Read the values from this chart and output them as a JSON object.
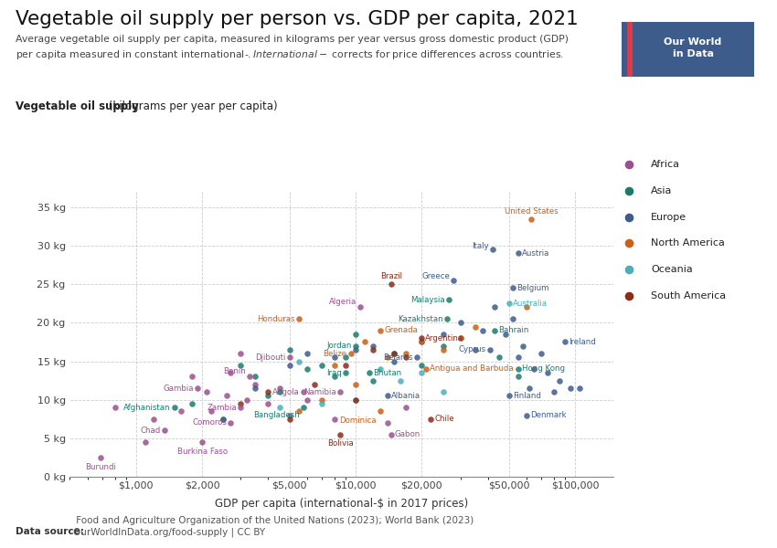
{
  "title": "Vegetable oil supply per person vs. GDP per capita, 2021",
  "subtitle": "Average vegetable oil supply per capita, measured in kilograms per year versus gross domestic product (GDP)\nper capita measured in constant international-$. International-$ corrects for price differences across countries.",
  "ylabel_bold": "Vegetable oil supply",
  "ylabel_normal": " (kilograms per year per capita)",
  "xlabel": "GDP per capita (international-$ in 2017 prices)",
  "datasource_bold": "Data source:",
  "datasource_normal": " Food and Agriculture Organization of the United Nations (2023); World Bank (2023)\nOurWorldInData.org/food-supply | CC BY",
  "ylim": [
    0,
    37
  ],
  "yticks": [
    0,
    5,
    10,
    15,
    20,
    25,
    30,
    35
  ],
  "bg_color": "#ffffff",
  "grid_color": "#c8c8c8",
  "continents": {
    "Africa": {
      "color": "#9B4F8E"
    },
    "Asia": {
      "color": "#1A7B6C"
    },
    "Europe": {
      "color": "#3D5C8C"
    },
    "North America": {
      "color": "#C8611A"
    },
    "Oceania": {
      "color": "#4AAFB8"
    },
    "South America": {
      "color": "#8B2C1A"
    }
  },
  "labeled_points": [
    {
      "country": "Burundi",
      "gdp": 690,
      "veg": 2.5,
      "continent": "Africa"
    },
    {
      "country": "Afghanistan",
      "gdp": 1500,
      "veg": 9.0,
      "continent": "Asia"
    },
    {
      "country": "Chad",
      "gdp": 1350,
      "veg": 6.0,
      "continent": "Africa"
    },
    {
      "country": "Gambia",
      "gdp": 1900,
      "veg": 11.5,
      "continent": "Africa"
    },
    {
      "country": "Burkina Faso",
      "gdp": 2000,
      "veg": 4.5,
      "continent": "Africa"
    },
    {
      "country": "Comoros",
      "gdp": 2700,
      "veg": 7.0,
      "continent": "Africa"
    },
    {
      "country": "Zambia",
      "gdp": 3000,
      "veg": 9.0,
      "continent": "Africa"
    },
    {
      "country": "Benin",
      "gdp": 3300,
      "veg": 13.0,
      "continent": "Africa"
    },
    {
      "country": "Djibouti",
      "gdp": 5000,
      "veg": 15.5,
      "continent": "Africa"
    },
    {
      "country": "Angola",
      "gdp": 5800,
      "veg": 11.0,
      "continent": "Africa"
    },
    {
      "country": "Bangladesh",
      "gdp": 5800,
      "veg": 9.0,
      "continent": "Asia"
    },
    {
      "country": "Honduras",
      "gdp": 5500,
      "veg": 20.5,
      "continent": "North America"
    },
    {
      "country": "Namibia",
      "gdp": 8500,
      "veg": 11.0,
      "continent": "Africa"
    },
    {
      "country": "Iraq",
      "gdp": 9000,
      "veg": 13.5,
      "continent": "Asia"
    },
    {
      "country": "Bolivia",
      "gdp": 8500,
      "veg": 5.5,
      "continent": "South America"
    },
    {
      "country": "Algeria",
      "gdp": 10500,
      "veg": 22.0,
      "continent": "Africa"
    },
    {
      "country": "Jordan",
      "gdp": 10000,
      "veg": 17.0,
      "continent": "Asia"
    },
    {
      "country": "Belize",
      "gdp": 9500,
      "veg": 16.0,
      "continent": "North America"
    },
    {
      "country": "Bhutan",
      "gdp": 11500,
      "veg": 13.5,
      "continent": "Asia"
    },
    {
      "country": "Grenada",
      "gdp": 13000,
      "veg": 19.0,
      "continent": "North America"
    },
    {
      "country": "Dominica",
      "gdp": 13000,
      "veg": 8.5,
      "continent": "North America"
    },
    {
      "country": "Albania",
      "gdp": 14000,
      "veg": 10.5,
      "continent": "Europe"
    },
    {
      "country": "Gabon",
      "gdp": 14500,
      "veg": 5.5,
      "continent": "Africa"
    },
    {
      "country": "Brazil",
      "gdp": 14500,
      "veg": 25.0,
      "continent": "South America"
    },
    {
      "country": "Belarus",
      "gdp": 19000,
      "veg": 15.5,
      "continent": "Europe"
    },
    {
      "country": "Argentina",
      "gdp": 20000,
      "veg": 18.0,
      "continent": "South America"
    },
    {
      "country": "Chile",
      "gdp": 22000,
      "veg": 7.5,
      "continent": "South America"
    },
    {
      "country": "Kazakhstan",
      "gdp": 26000,
      "veg": 20.5,
      "continent": "Asia"
    },
    {
      "country": "Malaysia",
      "gdp": 26500,
      "veg": 23.0,
      "continent": "Asia"
    },
    {
      "country": "Greece",
      "gdp": 28000,
      "veg": 25.5,
      "continent": "Europe"
    },
    {
      "country": "Bahrain",
      "gdp": 43000,
      "veg": 19.0,
      "continent": "Asia"
    },
    {
      "country": "Cyprus",
      "gdp": 41000,
      "veg": 16.5,
      "continent": "Europe"
    },
    {
      "country": "Antigua and Barbuda",
      "gdp": 21000,
      "veg": 14.0,
      "continent": "North America"
    },
    {
      "country": "Hong Kong",
      "gdp": 55000,
      "veg": 14.0,
      "continent": "Asia"
    },
    {
      "country": "Australia",
      "gdp": 50000,
      "veg": 22.5,
      "continent": "Oceania"
    },
    {
      "country": "Belgium",
      "gdp": 52000,
      "veg": 24.5,
      "continent": "Europe"
    },
    {
      "country": "Italy",
      "gdp": 42000,
      "veg": 29.5,
      "continent": "Europe"
    },
    {
      "country": "Austria",
      "gdp": 55000,
      "veg": 29.0,
      "continent": "Europe"
    },
    {
      "country": "Ireland",
      "gdp": 90000,
      "veg": 17.5,
      "continent": "Europe"
    },
    {
      "country": "Finland",
      "gdp": 50000,
      "veg": 10.5,
      "continent": "Europe"
    },
    {
      "country": "Denmark",
      "gdp": 60000,
      "veg": 8.0,
      "continent": "Europe"
    },
    {
      "country": "United States",
      "gdp": 63000,
      "veg": 33.5,
      "continent": "North America"
    }
  ],
  "unlabeled_points": [
    {
      "gdp": 800,
      "veg": 9.0,
      "continent": "Africa"
    },
    {
      "gdp": 1100,
      "veg": 4.5,
      "continent": "Africa"
    },
    {
      "gdp": 1200,
      "veg": 7.5,
      "continent": "Africa"
    },
    {
      "gdp": 1600,
      "veg": 8.5,
      "continent": "Africa"
    },
    {
      "gdp": 1800,
      "veg": 13.0,
      "continent": "Africa"
    },
    {
      "gdp": 2100,
      "veg": 11.0,
      "continent": "Africa"
    },
    {
      "gdp": 2200,
      "veg": 8.5,
      "continent": "Africa"
    },
    {
      "gdp": 2500,
      "veg": 7.5,
      "continent": "Africa"
    },
    {
      "gdp": 2600,
      "veg": 10.5,
      "continent": "Africa"
    },
    {
      "gdp": 2700,
      "veg": 13.5,
      "continent": "Africa"
    },
    {
      "gdp": 3000,
      "veg": 16.0,
      "continent": "Africa"
    },
    {
      "gdp": 3200,
      "veg": 10.0,
      "continent": "Africa"
    },
    {
      "gdp": 3500,
      "veg": 12.0,
      "continent": "Africa"
    },
    {
      "gdp": 4000,
      "veg": 9.5,
      "continent": "Africa"
    },
    {
      "gdp": 4500,
      "veg": 11.5,
      "continent": "Africa"
    },
    {
      "gdp": 5000,
      "veg": 8.0,
      "continent": "Africa"
    },
    {
      "gdp": 6000,
      "veg": 10.0,
      "continent": "Africa"
    },
    {
      "gdp": 8000,
      "veg": 7.5,
      "continent": "Africa"
    },
    {
      "gdp": 14000,
      "veg": 7.0,
      "continent": "Africa"
    },
    {
      "gdp": 17000,
      "veg": 9.0,
      "continent": "Africa"
    },
    {
      "gdp": 1800,
      "veg": 9.5,
      "continent": "Asia"
    },
    {
      "gdp": 2500,
      "veg": 7.5,
      "continent": "Asia"
    },
    {
      "gdp": 3000,
      "veg": 14.5,
      "continent": "Asia"
    },
    {
      "gdp": 3500,
      "veg": 13.0,
      "continent": "Asia"
    },
    {
      "gdp": 4000,
      "veg": 10.5,
      "continent": "Asia"
    },
    {
      "gdp": 4500,
      "veg": 11.0,
      "continent": "Asia"
    },
    {
      "gdp": 5000,
      "veg": 16.5,
      "continent": "Asia"
    },
    {
      "gdp": 6000,
      "veg": 14.0,
      "continent": "Asia"
    },
    {
      "gdp": 7000,
      "veg": 14.5,
      "continent": "Asia"
    },
    {
      "gdp": 8000,
      "veg": 13.0,
      "continent": "Asia"
    },
    {
      "gdp": 9000,
      "veg": 15.5,
      "continent": "Asia"
    },
    {
      "gdp": 10000,
      "veg": 18.5,
      "continent": "Asia"
    },
    {
      "gdp": 12000,
      "veg": 12.5,
      "continent": "Asia"
    },
    {
      "gdp": 15000,
      "veg": 16.0,
      "continent": "Asia"
    },
    {
      "gdp": 20000,
      "veg": 14.5,
      "continent": "Asia"
    },
    {
      "gdp": 25000,
      "veg": 17.0,
      "continent": "Asia"
    },
    {
      "gdp": 30000,
      "veg": 18.0,
      "continent": "Asia"
    },
    {
      "gdp": 45000,
      "veg": 15.5,
      "continent": "Asia"
    },
    {
      "gdp": 55000,
      "veg": 13.0,
      "continent": "Asia"
    },
    {
      "gdp": 3500,
      "veg": 11.5,
      "continent": "Europe"
    },
    {
      "gdp": 5000,
      "veg": 14.5,
      "continent": "Europe"
    },
    {
      "gdp": 6000,
      "veg": 16.0,
      "continent": "Europe"
    },
    {
      "gdp": 8000,
      "veg": 15.5,
      "continent": "Europe"
    },
    {
      "gdp": 10000,
      "veg": 16.5,
      "continent": "Europe"
    },
    {
      "gdp": 12000,
      "veg": 17.0,
      "continent": "Europe"
    },
    {
      "gdp": 15000,
      "veg": 15.0,
      "continent": "Europe"
    },
    {
      "gdp": 20000,
      "veg": 17.5,
      "continent": "Europe"
    },
    {
      "gdp": 25000,
      "veg": 18.5,
      "continent": "Europe"
    },
    {
      "gdp": 30000,
      "veg": 20.0,
      "continent": "Europe"
    },
    {
      "gdp": 35000,
      "veg": 16.5,
      "continent": "Europe"
    },
    {
      "gdp": 38000,
      "veg": 19.0,
      "continent": "Europe"
    },
    {
      "gdp": 43000,
      "veg": 22.0,
      "continent": "Europe"
    },
    {
      "gdp": 48000,
      "veg": 18.5,
      "continent": "Europe"
    },
    {
      "gdp": 52000,
      "veg": 20.5,
      "continent": "Europe"
    },
    {
      "gdp": 55000,
      "veg": 15.5,
      "continent": "Europe"
    },
    {
      "gdp": 58000,
      "veg": 17.0,
      "continent": "Europe"
    },
    {
      "gdp": 62000,
      "veg": 11.5,
      "continent": "Europe"
    },
    {
      "gdp": 65000,
      "veg": 14.0,
      "continent": "Europe"
    },
    {
      "gdp": 70000,
      "veg": 16.0,
      "continent": "Europe"
    },
    {
      "gdp": 75000,
      "veg": 13.5,
      "continent": "Europe"
    },
    {
      "gdp": 80000,
      "veg": 11.0,
      "continent": "Europe"
    },
    {
      "gdp": 85000,
      "veg": 12.5,
      "continent": "Europe"
    },
    {
      "gdp": 95000,
      "veg": 11.5,
      "continent": "Europe"
    },
    {
      "gdp": 105000,
      "veg": 11.5,
      "continent": "Europe"
    },
    {
      "gdp": 5500,
      "veg": 8.5,
      "continent": "North America"
    },
    {
      "gdp": 7000,
      "veg": 10.0,
      "continent": "North America"
    },
    {
      "gdp": 8000,
      "veg": 14.5,
      "continent": "North America"
    },
    {
      "gdp": 10000,
      "veg": 12.0,
      "continent": "North America"
    },
    {
      "gdp": 11000,
      "veg": 17.5,
      "continent": "North America"
    },
    {
      "gdp": 14000,
      "veg": 15.5,
      "continent": "North America"
    },
    {
      "gdp": 17000,
      "veg": 16.0,
      "continent": "North America"
    },
    {
      "gdp": 20000,
      "veg": 17.5,
      "continent": "North America"
    },
    {
      "gdp": 25000,
      "veg": 16.5,
      "continent": "North America"
    },
    {
      "gdp": 30000,
      "veg": 18.0,
      "continent": "North America"
    },
    {
      "gdp": 35000,
      "veg": 19.5,
      "continent": "North America"
    },
    {
      "gdp": 60000,
      "veg": 22.0,
      "continent": "North America"
    },
    {
      "gdp": 4500,
      "veg": 9.0,
      "continent": "Oceania"
    },
    {
      "gdp": 5500,
      "veg": 15.0,
      "continent": "Oceania"
    },
    {
      "gdp": 7000,
      "veg": 9.5,
      "continent": "Oceania"
    },
    {
      "gdp": 10000,
      "veg": 10.0,
      "continent": "Oceania"
    },
    {
      "gdp": 13000,
      "veg": 14.0,
      "continent": "Oceania"
    },
    {
      "gdp": 16000,
      "veg": 12.5,
      "continent": "Oceania"
    },
    {
      "gdp": 20000,
      "veg": 13.5,
      "continent": "Oceania"
    },
    {
      "gdp": 25000,
      "veg": 11.0,
      "continent": "Oceania"
    },
    {
      "gdp": 3000,
      "veg": 9.5,
      "continent": "South America"
    },
    {
      "gdp": 4000,
      "veg": 11.0,
      "continent": "South America"
    },
    {
      "gdp": 5000,
      "veg": 7.5,
      "continent": "South America"
    },
    {
      "gdp": 6500,
      "veg": 12.0,
      "continent": "South America"
    },
    {
      "gdp": 9000,
      "veg": 14.5,
      "continent": "South America"
    },
    {
      "gdp": 10000,
      "veg": 10.0,
      "continent": "South America"
    },
    {
      "gdp": 12000,
      "veg": 16.5,
      "continent": "South America"
    },
    {
      "gdp": 15000,
      "veg": 16.0,
      "continent": "South America"
    },
    {
      "gdp": 17000,
      "veg": 15.5,
      "continent": "South America"
    }
  ],
  "owid_bg": "#3d5c8c",
  "owid_fg": "#ffffff",
  "owid_accent": "#e63946",
  "owid_text": "Our World\nin Data"
}
